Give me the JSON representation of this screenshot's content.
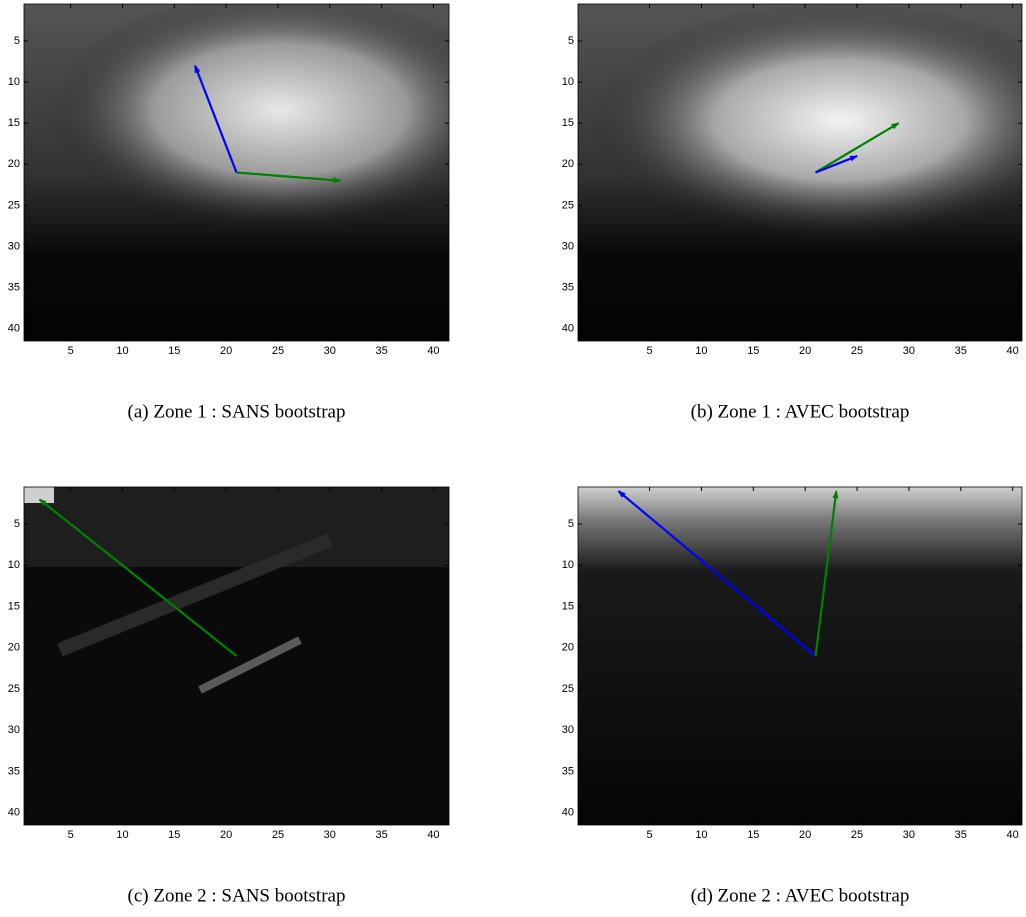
{
  "chart_data": [
    {
      "type": "image",
      "caption": "(a) Zone 1 : SANS bootstrap",
      "xlim": [
        0.5,
        41.5
      ],
      "ylim": [
        41.5,
        0.5
      ],
      "xticks": [
        5,
        10,
        15,
        20,
        25,
        30,
        35,
        40
      ],
      "yticks": [
        5,
        10,
        15,
        20,
        25,
        30,
        35,
        40
      ],
      "arrows": [
        {
          "color": "#0000ff",
          "x": [
            21,
            17
          ],
          "y": [
            21,
            8
          ]
        },
        {
          "color": "#008000",
          "x": [
            21,
            31
          ],
          "y": [
            21,
            22
          ]
        }
      ]
    },
    {
      "type": "image",
      "caption": "(b) Zone 1 : AVEC bootstrap",
      "xlim": [
        -1.9,
        40.9
      ],
      "ylim": [
        41.5,
        0.5
      ],
      "xticks": [
        5,
        10,
        15,
        20,
        25,
        30,
        35,
        40
      ],
      "yticks": [
        5,
        10,
        15,
        20,
        25,
        30,
        35,
        40
      ],
      "arrows": [
        {
          "color": "#008000",
          "x": [
            21,
            29
          ],
          "y": [
            21,
            15
          ]
        },
        {
          "color": "#0000ff",
          "x": [
            21,
            25
          ],
          "y": [
            21,
            19
          ]
        }
      ]
    },
    {
      "type": "image",
      "caption": "(c) Zone 2 : SANS bootstrap",
      "xlim": [
        0.5,
        41.5
      ],
      "ylim": [
        41.5,
        0.5
      ],
      "xticks": [
        5,
        10,
        15,
        20,
        25,
        30,
        35,
        40
      ],
      "yticks": [
        5,
        10,
        15,
        20,
        25,
        30,
        35,
        40
      ],
      "arrows": [
        {
          "color": "#008000",
          "x": [
            21,
            2
          ],
          "y": [
            21,
            2
          ]
        }
      ]
    },
    {
      "type": "image",
      "caption": "(d) Zone 2 : AVEC bootstrap",
      "xlim": [
        -1.9,
        40.9
      ],
      "ylim": [
        41.5,
        0.5
      ],
      "xticks": [
        5,
        10,
        15,
        20,
        25,
        30,
        35,
        40
      ],
      "yticks": [
        5,
        10,
        15,
        20,
        25,
        30,
        35,
        40
      ],
      "arrows": [
        {
          "color": "#0000ff",
          "x": [
            21,
            2
          ],
          "y": [
            21,
            1
          ]
        },
        {
          "color": "#008000",
          "x": [
            21,
            23
          ],
          "y": [
            21,
            1
          ]
        }
      ]
    }
  ]
}
